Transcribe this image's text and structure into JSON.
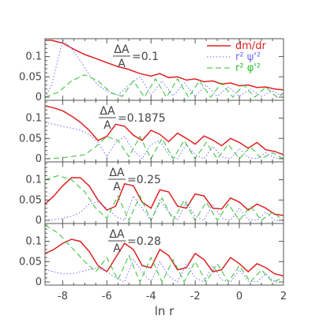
{
  "chart_data": {
    "type": "line",
    "xlabel": "ln r",
    "xlim": [
      -8.8,
      2
    ],
    "ylim": [
      0,
      0.14
    ],
    "x_ticks": [
      "-8",
      "-6",
      "-4",
      "-2",
      "0",
      "2"
    ],
    "y_ticks": [
      "0",
      "0.05",
      "0.1"
    ],
    "legend": {
      "position": "top-right",
      "entries": [
        {
          "label": "dm/dr",
          "color": "#e02020"
        },
        {
          "label": "r² ψ'²",
          "color": "#6b6bff"
        },
        {
          "label": "r² φ'²",
          "color": "#30c030"
        }
      ]
    },
    "panels": [
      {
        "annotation": {
          "num": "ΔA",
          "den": "A",
          "value": "=0.1"
        },
        "series": [
          {
            "name": "dm/dr",
            "x": [
              -8.8,
              -8.5,
              -8,
              -7.5,
              -7,
              -6.5,
              -6,
              -5.5,
              -5,
              -4.5,
              -4,
              -3.6,
              -3.2,
              -2.8,
              -2.4,
              -2,
              -1.6,
              -1.2,
              -0.8,
              -0.4,
              0,
              0.4,
              0.8,
              1.2,
              1.6,
              2
            ],
            "values": [
              0.14,
              0.14,
              0.133,
              0.118,
              0.105,
              0.095,
              0.085,
              0.075,
              0.068,
              0.058,
              0.052,
              0.058,
              0.048,
              0.05,
              0.042,
              0.045,
              0.038,
              0.04,
              0.032,
              0.035,
              0.028,
              0.03,
              0.024,
              0.025,
              0.02,
              0.018
            ]
          },
          {
            "name": "r² ψ'²",
            "x": [
              -8.8,
              -8.5,
              -8,
              -7.6,
              -7.2,
              -6.8,
              -6.4,
              -6,
              -5.5,
              -5,
              -4.5,
              -4,
              -3.5,
              -3,
              -2.5,
              -2,
              -1.5,
              -1,
              -0.5,
              0,
              0.5,
              1,
              1.5,
              2
            ],
            "values": [
              0.0,
              0.03,
              0.14,
              0.12,
              0.09,
              0.055,
              0.03,
              0.015,
              0.005,
              0.03,
              0.05,
              0.005,
              0.04,
              0.003,
              0.035,
              0.002,
              0.03,
              0.002,
              0.025,
              0.002,
              0.02,
              0.002,
              0.015,
              0.002
            ]
          },
          {
            "name": "r² φ'²",
            "x": [
              -8.8,
              -8.2,
              -7.6,
              -7,
              -6.4,
              -5.8,
              -5.3,
              -4.8,
              -4.3,
              -3.8,
              -3.3,
              -2.8,
              -2.3,
              -1.8,
              -1.3,
              -0.8,
              -0.3,
              0.2,
              0.7,
              1.2,
              1.7,
              2
            ],
            "values": [
              0.0,
              0.012,
              0.04,
              0.055,
              0.04,
              0.01,
              0.002,
              0.04,
              0.0,
              0.045,
              0.0,
              0.045,
              0.0,
              0.04,
              0.0,
              0.035,
              0.0,
              0.03,
              0.0,
              0.025,
              0.0,
              0.01
            ]
          }
        ]
      },
      {
        "annotation": {
          "num": "ΔA",
          "den": "A",
          "value": "=0.1875"
        },
        "series": [
          {
            "name": "dm/dr",
            "x": [
              -8.8,
              -8.4,
              -8,
              -7.6,
              -7.2,
              -6.8,
              -6.4,
              -6,
              -5.6,
              -5.2,
              -4.8,
              -4.4,
              -4,
              -3.6,
              -3.2,
              -2.8,
              -2.4,
              -2,
              -1.6,
              -1.2,
              -0.8,
              -0.4,
              0,
              0.4,
              0.8,
              1.2,
              1.6,
              2
            ],
            "values": [
              0.13,
              0.125,
              0.118,
              0.105,
              0.09,
              0.07,
              0.045,
              0.055,
              0.085,
              0.08,
              0.058,
              0.045,
              0.07,
              0.06,
              0.042,
              0.063,
              0.05,
              0.036,
              0.056,
              0.046,
              0.032,
              0.05,
              0.04,
              0.026,
              0.04,
              0.022,
              0.018,
              0.01
            ]
          },
          {
            "name": "r² ψ'²",
            "x": [
              -8.8,
              -8.4,
              -8,
              -7.6,
              -7.2,
              -6.8,
              -6.4,
              -6,
              -5.6,
              -5.2,
              -4.8,
              -4.4,
              -4,
              -3.6,
              -3.2,
              -2.8,
              -2.4,
              -2,
              -1.6,
              -1.2,
              -0.8,
              -0.4,
              0,
              0.4,
              0.8,
              1.2,
              1.6,
              2
            ],
            "values": [
              0.09,
              0.085,
              0.08,
              0.075,
              0.07,
              0.06,
              0.04,
              0.005,
              0.04,
              0.055,
              0.02,
              0.0,
              0.035,
              0.045,
              0.01,
              0.0,
              0.035,
              0.01,
              0.0,
              0.03,
              0.005,
              0.0,
              0.025,
              0.003,
              0.0,
              0.015,
              0.002,
              0.0
            ]
          },
          {
            "name": "r² φ'²",
            "x": [
              -8.8,
              -8.2,
              -7.6,
              -7,
              -6.5,
              -6,
              -5.5,
              -5,
              -4.5,
              -4,
              -3.5,
              -3,
              -2.5,
              -2,
              -1.5,
              -1,
              -0.5,
              0,
              0.5,
              1,
              1.5,
              2
            ],
            "values": [
              0.0,
              0.002,
              0.005,
              0.01,
              0.03,
              0.055,
              0.045,
              0.005,
              0.055,
              0.0,
              0.05,
              0.0,
              0.045,
              0.0,
              0.04,
              0.0,
              0.035,
              0.0,
              0.03,
              0.0,
              0.015,
              0.0
            ]
          }
        ]
      },
      {
        "annotation": {
          "num": "ΔA",
          "den": "A",
          "value": "=0.25"
        },
        "series": [
          {
            "name": "dm/dr",
            "x": [
              -8.8,
              -8.4,
              -8,
              -7.6,
              -7.2,
              -6.8,
              -6.4,
              -6,
              -5.6,
              -5.2,
              -4.8,
              -4.4,
              -4,
              -3.6,
              -3.2,
              -2.8,
              -2.4,
              -2,
              -1.6,
              -1.2,
              -0.8,
              -0.4,
              0,
              0.4,
              0.8,
              1.2,
              1.6,
              2
            ],
            "values": [
              0.04,
              0.06,
              0.085,
              0.105,
              0.105,
              0.085,
              0.05,
              0.025,
              0.035,
              0.09,
              0.085,
              0.045,
              0.03,
              0.075,
              0.07,
              0.035,
              0.03,
              0.065,
              0.06,
              0.03,
              0.028,
              0.055,
              0.045,
              0.025,
              0.04,
              0.03,
              0.015,
              0.012
            ]
          },
          {
            "name": "r² ψ'²",
            "x": [
              -8.8,
              -8.4,
              -8,
              -7.6,
              -7.2,
              -6.8,
              -6.4,
              -6,
              -5.6,
              -5.2,
              -4.8,
              -4.4,
              -4,
              -3.6,
              -3.2,
              -2.8,
              -2.4,
              -2,
              -1.6,
              -1.2,
              -0.8,
              -0.4,
              0,
              0.4,
              0.8,
              1.2,
              1.6,
              2
            ],
            "values": [
              0.0,
              0.002,
              0.005,
              0.01,
              0.02,
              0.04,
              0.045,
              0.03,
              0.01,
              0.0,
              0.06,
              0.03,
              0.0,
              0.05,
              0.02,
              0.0,
              0.045,
              0.01,
              0.0,
              0.04,
              0.005,
              0.0,
              0.03,
              0.002,
              0.0,
              0.02,
              0.0,
              0.0
            ]
          },
          {
            "name": "r² φ'²",
            "x": [
              -8.8,
              -8.2,
              -7.6,
              -7,
              -6.5,
              -6,
              -5.5,
              -5,
              -4.5,
              -4,
              -3.5,
              -3,
              -2.5,
              -2,
              -1.5,
              -1,
              -0.5,
              0,
              0.5,
              1,
              1.5,
              2
            ],
            "values": [
              0.1,
              0.11,
              0.1,
              0.07,
              0.03,
              0.005,
              0.06,
              0.0,
              0.06,
              0.0,
              0.055,
              0.0,
              0.05,
              0.0,
              0.045,
              0.0,
              0.04,
              0.0,
              0.035,
              0.0,
              0.02,
              0.0
            ]
          }
        ]
      },
      {
        "annotation": {
          "num": "ΔA",
          "den": "A",
          "value": "=0.28"
        },
        "series": [
          {
            "name": "dm/dr",
            "x": [
              -8.8,
              -8.4,
              -8,
              -7.6,
              -7.2,
              -6.8,
              -6.4,
              -6,
              -5.6,
              -5.2,
              -4.8,
              -4.4,
              -4,
              -3.6,
              -3.2,
              -2.8,
              -2.4,
              -2,
              -1.6,
              -1.2,
              -0.8,
              -0.4,
              0,
              0.4,
              0.8,
              1.2,
              1.6,
              2
            ],
            "values": [
              0.07,
              0.08,
              0.095,
              0.105,
              0.1,
              0.075,
              0.04,
              0.025,
              0.06,
              0.095,
              0.08,
              0.04,
              0.035,
              0.08,
              0.065,
              0.03,
              0.035,
              0.07,
              0.055,
              0.025,
              0.03,
              0.06,
              0.045,
              0.025,
              0.045,
              0.035,
              0.02,
              0.015
            ]
          },
          {
            "name": "r² ψ'²",
            "x": [
              -8.8,
              -8.4,
              -8,
              -7.6,
              -7.2,
              -6.8,
              -6.4,
              -6,
              -5.6,
              -5.2,
              -4.8,
              -4.4,
              -4,
              -3.6,
              -3.2,
              -2.8,
              -2.4,
              -2,
              -1.6,
              -1.2,
              -0.8,
              -0.4,
              0,
              0.4,
              0.8,
              1.2,
              1.6,
              2
            ],
            "values": [
              0.03,
              0.025,
              0.02,
              0.02,
              0.025,
              0.03,
              0.035,
              0.025,
              0.01,
              0.0,
              0.055,
              0.025,
              0.0,
              0.05,
              0.015,
              0.0,
              0.045,
              0.01,
              0.0,
              0.04,
              0.005,
              0.0,
              0.03,
              0.002,
              0.0,
              0.02,
              0.0,
              0.0
            ]
          },
          {
            "name": "r² φ'²",
            "x": [
              -8.8,
              -8.2,
              -7.6,
              -7,
              -6.5,
              -6,
              -5.5,
              -5,
              -4.5,
              -4,
              -3.5,
              -3,
              -2.5,
              -2,
              -1.5,
              -1,
              -0.5,
              0,
              0.5,
              1,
              1.5,
              2
            ],
            "values": [
              0.14,
              0.12,
              0.085,
              0.05,
              0.025,
              0.06,
              0.005,
              0.065,
              0.0,
              0.06,
              0.0,
              0.055,
              0.0,
              0.05,
              0.0,
              0.045,
              0.0,
              0.04,
              0.0,
              0.03,
              0.0,
              0.01
            ]
          }
        ]
      }
    ]
  }
}
